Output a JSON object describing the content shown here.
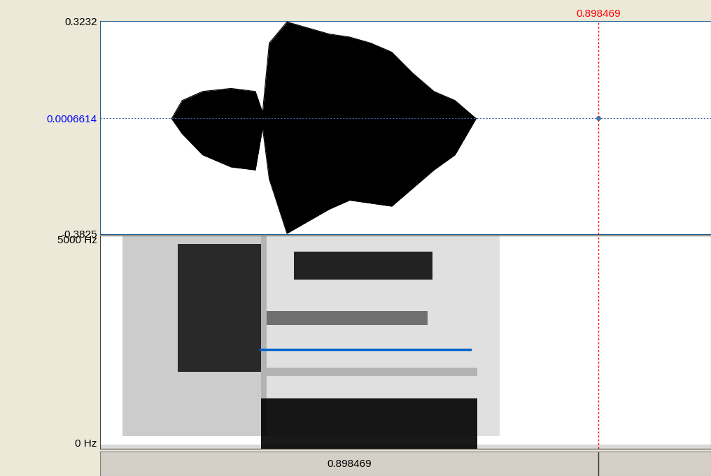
{
  "chart_data": [
    {
      "type": "waveform",
      "xlim": [
        0,
        1.1016
      ],
      "ylim": [
        -0.3825,
        0.3232
      ],
      "yticks": [
        0.3232,
        0.0006614,
        -0.3825
      ],
      "tick_labels": "y",
      "color": "#000000",
      "x": [
        0.129,
        0.148,
        0.185,
        0.236,
        0.28,
        0.293,
        0.305,
        0.337,
        0.375,
        0.413,
        0.45,
        0.488,
        0.526,
        0.564,
        0.602,
        0.64,
        0.678
      ],
      "upper": [
        0.0,
        0.06,
        0.09,
        0.1,
        0.09,
        0.02,
        0.25,
        0.32,
        0.3,
        0.28,
        0.27,
        0.25,
        0.22,
        0.15,
        0.09,
        0.06,
        0.0
      ],
      "lower": [
        0.0,
        -0.05,
        -0.12,
        -0.16,
        -0.17,
        -0.03,
        -0.2,
        -0.38,
        -0.34,
        -0.3,
        -0.27,
        -0.28,
        -0.29,
        -0.23,
        -0.17,
        -0.12,
        0.0
      ]
    },
    {
      "type": "spectrogram",
      "xlim": [
        0,
        1.1016
      ],
      "ylim": [
        0,
        5000
      ],
      "yticks": [
        {
          "value": 5000,
          "label": "5000 Hz"
        },
        {
          "value": 0,
          "label": "0 Hz"
        }
      ],
      "tick_labels": "y",
      "bands": [
        {
          "t0": 0.0,
          "t1": 1.1016,
          "f0": 0,
          "f1": 100,
          "level": 0.15
        },
        {
          "t0": 0.04,
          "t1": 0.3,
          "f0": 300,
          "f1": 5000,
          "level": 0.2
        },
        {
          "t0": 0.14,
          "t1": 0.29,
          "f0": 1800,
          "f1": 4800,
          "level": 0.8
        },
        {
          "t0": 0.29,
          "t1": 0.72,
          "f0": 300,
          "f1": 5000,
          "level": 0.12
        },
        {
          "t0": 0.3,
          "t1": 0.68,
          "f0": 1700,
          "f1": 1900,
          "level": 0.2
        },
        {
          "t0": 0.29,
          "t1": 0.68,
          "f0": 0,
          "f1": 1180,
          "level": 0.9
        },
        {
          "t0": 0.3,
          "t1": 0.59,
          "f0": 2900,
          "f1": 3230,
          "level": 0.5
        },
        {
          "t0": 0.35,
          "t1": 0.6,
          "f0": 3970,
          "f1": 4620,
          "level": 0.85
        }
      ],
      "formant_line": {
        "x": [
          0.289,
          0.667
        ],
        "values": [
          2330,
          2330
        ],
        "color": "#0066cc"
      }
    }
  ],
  "cursor": 0.898469
}
